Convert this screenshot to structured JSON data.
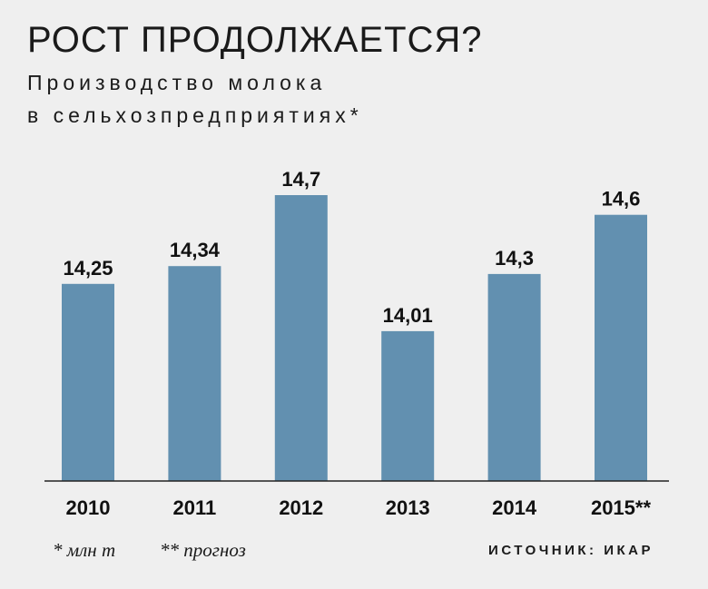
{
  "header": {
    "title": "РОСТ ПРОДОЛЖАЕТСЯ?",
    "subtitle_line1": "Производство молока",
    "subtitle_line2": "в сельхозпредприятиях*"
  },
  "footer": {
    "footnote1": "* млн т",
    "footnote2": "** прогноз",
    "source": "ИСТОЧНИК: ИКАР"
  },
  "colors": {
    "bar": "#6290b0",
    "background": "#efefef"
  },
  "chart_data": {
    "type": "bar",
    "title": "РОСТ ПРОДОЛЖАЕТСЯ?",
    "subtitle": "Производство молока в сельхозпредприятиях*",
    "categories": [
      "2010",
      "2011",
      "2012",
      "2013",
      "2014",
      "2015**"
    ],
    "values": [
      14.25,
      14.34,
      14.7,
      14.01,
      14.3,
      14.6
    ],
    "value_labels": [
      "14,25",
      "14,34",
      "14,7",
      "14,01",
      "14,3",
      "14,6"
    ],
    "unit": "млн т",
    "ylim": [
      13.25,
      14.7
    ],
    "grid": false,
    "legend": "none"
  }
}
